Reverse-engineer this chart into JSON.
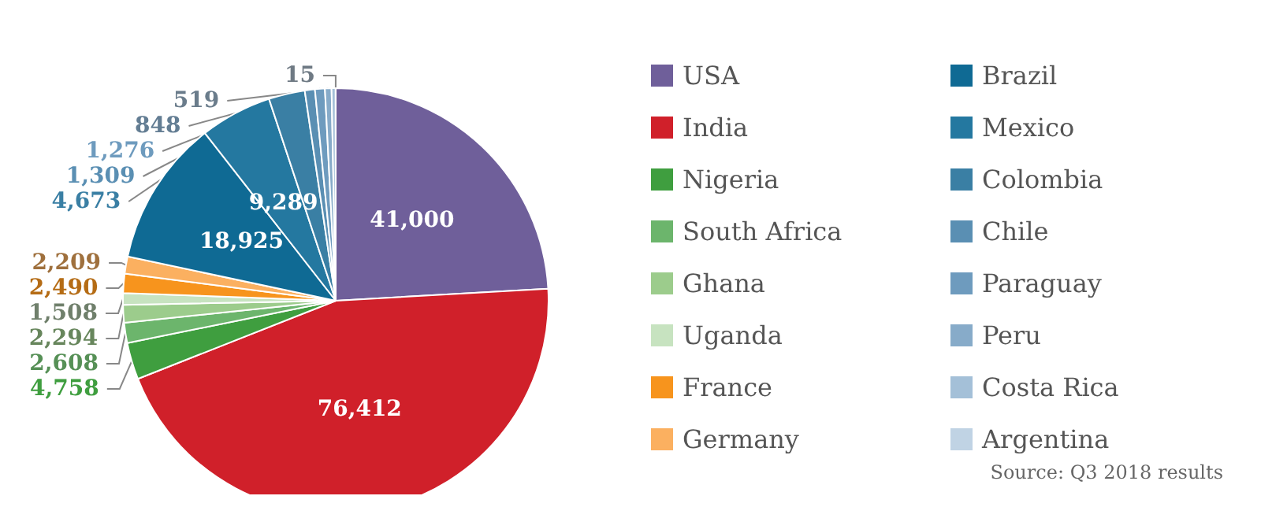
{
  "chart_data": {
    "type": "pie",
    "categories": [
      "USA",
      "India",
      "Nigeria",
      "South Africa",
      "Ghana",
      "Uganda",
      "France",
      "Germany",
      "Brazil",
      "Mexico",
      "Colombia",
      "Chile",
      "Paraguay",
      "Peru",
      "Costa Rica",
      "Argentina"
    ],
    "values": [
      41000,
      76412,
      4758,
      2608,
      2294,
      1508,
      2490,
      2209,
      18925,
      9289,
      4673,
      1309,
      1276,
      848,
      519,
      15
    ],
    "colors": [
      "#6f5f9a",
      "#d0202a",
      "#3f9e3f",
      "#6cb56c",
      "#9ccc8c",
      "#c7e3c0",
      "#f7941d",
      "#fbb060",
      "#0f6a94",
      "#2478a0",
      "#3a7fa4",
      "#5a8fb3",
      "#6e9bbe",
      "#87abc9",
      "#a4c0d8",
      "#c0d3e4"
    ],
    "value_labels": [
      "41,000",
      "76,412",
      "4,758",
      "2,608",
      "2,294",
      "1,508",
      "2,490",
      "2,209",
      "18,925",
      "9,289",
      "4,673",
      "1,309",
      "1,276",
      "848",
      "519",
      "15"
    ],
    "legend": "right",
    "annotations": [
      "Source: Q3 2018 results"
    ]
  }
}
